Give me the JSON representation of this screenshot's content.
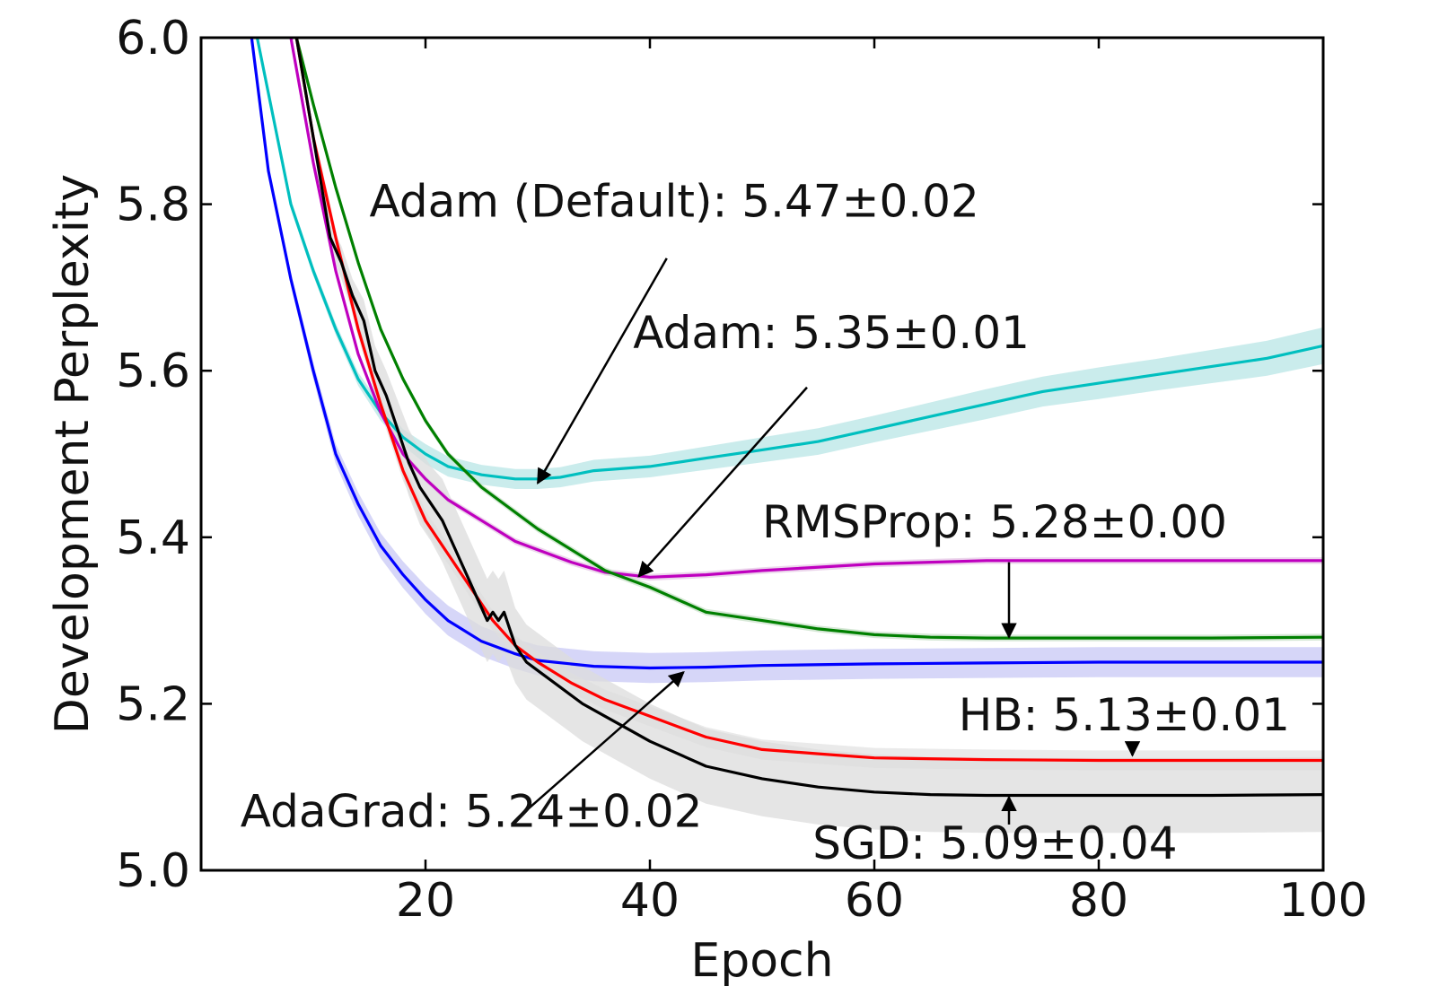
{
  "chart_data": {
    "type": "line",
    "xlabel": "Epoch",
    "ylabel": "Development Perplexity",
    "xlim": [
      0,
      100
    ],
    "ylim": [
      5.0,
      6.0
    ],
    "xticks": [
      20,
      40,
      60,
      80,
      100
    ],
    "xtick_labels": [
      "20",
      "40",
      "60",
      "80",
      "100"
    ],
    "yticks": [
      5.0,
      5.2,
      5.4,
      5.6,
      5.8,
      6.0
    ],
    "ytick_labels": [
      "5.0",
      "5.2",
      "5.4",
      "5.6",
      "5.8",
      "6.0"
    ],
    "series": [
      {
        "color": "#00bfbf",
        "band_color": "#b8e6e6",
        "x": [
          5,
          8,
          10,
          12,
          14,
          16,
          18,
          20,
          22,
          25,
          28,
          30,
          32,
          35,
          40,
          45,
          50,
          55,
          60,
          65,
          70,
          75,
          80,
          85,
          90,
          95,
          100
        ],
        "y": [
          6.0,
          5.8,
          5.72,
          5.65,
          5.59,
          5.55,
          5.52,
          5.5,
          5.485,
          5.475,
          5.47,
          5.47,
          5.472,
          5.48,
          5.485,
          5.495,
          5.505,
          5.515,
          5.53,
          5.545,
          5.56,
          5.575,
          5.585,
          5.595,
          5.605,
          5.615,
          5.63
        ],
        "band": [
          0.006,
          0.006,
          0.006,
          0.007,
          0.008,
          0.01,
          0.01,
          0.012,
          0.012,
          0.012,
          0.012,
          0.012,
          0.012,
          0.013,
          0.013,
          0.014,
          0.015,
          0.016,
          0.016,
          0.017,
          0.018,
          0.018,
          0.019,
          0.019,
          0.02,
          0.021,
          0.022
        ]
      },
      {
        "color": "#bf00bf",
        "band_color": "#e6c8e6",
        "x": [
          8,
          10,
          12,
          14,
          16,
          18,
          20,
          22,
          25,
          28,
          30,
          33,
          36,
          40,
          45,
          50,
          60,
          70,
          80,
          90,
          100
        ],
        "y": [
          6.0,
          5.85,
          5.72,
          5.62,
          5.55,
          5.5,
          5.47,
          5.445,
          5.42,
          5.395,
          5.385,
          5.37,
          5.358,
          5.352,
          5.355,
          5.36,
          5.368,
          5.372,
          5.372,
          5.372,
          5.372
        ],
        "band": [
          0.004,
          0.004,
          0.004,
          0.004,
          0.004,
          0.004,
          0.004,
          0.004,
          0.004,
          0.004,
          0.004,
          0.004,
          0.004,
          0.004,
          0.004,
          0.004,
          0.004,
          0.004,
          0.004,
          0.004,
          0.004
        ]
      },
      {
        "color": "#008000",
        "band_color": "#c8e0c8",
        "x": [
          8.5,
          10,
          12,
          14,
          16,
          18,
          20,
          22,
          25,
          28,
          30,
          33,
          36,
          40,
          45,
          50,
          55,
          60,
          65,
          70,
          80,
          90,
          100
        ],
        "y": [
          6.0,
          5.92,
          5.82,
          5.73,
          5.65,
          5.59,
          5.54,
          5.5,
          5.46,
          5.43,
          5.41,
          5.385,
          5.36,
          5.34,
          5.31,
          5.3,
          5.29,
          5.283,
          5.28,
          5.279,
          5.279,
          5.279,
          5.28
        ],
        "band": [
          0.004,
          0.004,
          0.004,
          0.004,
          0.004,
          0.004,
          0.004,
          0.004,
          0.004,
          0.004,
          0.004,
          0.004,
          0.004,
          0.004,
          0.004,
          0.004,
          0.004,
          0.004,
          0.004,
          0.004,
          0.004,
          0.004,
          0.004
        ]
      },
      {
        "color": "#0000ff",
        "band_color": "#c8c8f5",
        "x": [
          4.5,
          6,
          8,
          10,
          12,
          14,
          16,
          18,
          20,
          22,
          25,
          28,
          30,
          35,
          40,
          45,
          50,
          60,
          70,
          80,
          90,
          100
        ],
        "y": [
          6.0,
          5.84,
          5.71,
          5.6,
          5.5,
          5.44,
          5.39,
          5.355,
          5.325,
          5.3,
          5.275,
          5.26,
          5.252,
          5.245,
          5.243,
          5.244,
          5.246,
          5.248,
          5.249,
          5.25,
          5.25,
          5.25
        ],
        "band": [
          0.006,
          0.006,
          0.008,
          0.01,
          0.012,
          0.014,
          0.015,
          0.016,
          0.017,
          0.018,
          0.018,
          0.018,
          0.018,
          0.018,
          0.018,
          0.018,
          0.018,
          0.018,
          0.018,
          0.018,
          0.018,
          0.018
        ]
      },
      {
        "color": "#ff0000",
        "band_color": "#e3e3e3",
        "x": [
          8.5,
          10,
          12,
          14,
          16,
          18,
          20,
          22,
          24,
          26,
          28,
          30,
          33,
          36,
          40,
          45,
          50,
          55,
          60,
          70,
          80,
          90,
          100
        ],
        "y": [
          6.0,
          5.88,
          5.76,
          5.65,
          5.56,
          5.48,
          5.42,
          5.38,
          5.34,
          5.3,
          5.27,
          5.25,
          5.225,
          5.205,
          5.185,
          5.16,
          5.145,
          5.14,
          5.135,
          5.133,
          5.132,
          5.132,
          5.132
        ],
        "band": [
          0.01,
          0.01,
          0.01,
          0.01,
          0.01,
          0.012,
          0.012,
          0.012,
          0.012,
          0.012,
          0.012,
          0.012,
          0.012,
          0.012,
          0.012,
          0.012,
          0.012,
          0.012,
          0.012,
          0.012,
          0.012,
          0.012,
          0.012
        ]
      },
      {
        "color": "#000000",
        "band_color": "#dcdcdc",
        "x": [
          8.5,
          9.5,
          10.5,
          11.5,
          12.5,
          13.5,
          14.5,
          15.5,
          16.5,
          17.5,
          18.5,
          19.5,
          20.5,
          21.5,
          22.5,
          23.5,
          24.5,
          25.5,
          26,
          26.5,
          27,
          28,
          29,
          30,
          32,
          34,
          36,
          38,
          40,
          45,
          50,
          55,
          60,
          65,
          70,
          80,
          90,
          100
        ],
        "y": [
          6.0,
          5.92,
          5.84,
          5.76,
          5.73,
          5.69,
          5.66,
          5.6,
          5.57,
          5.53,
          5.49,
          5.46,
          5.44,
          5.42,
          5.39,
          5.36,
          5.33,
          5.3,
          5.31,
          5.3,
          5.31,
          5.27,
          5.25,
          5.24,
          5.22,
          5.2,
          5.185,
          5.17,
          5.155,
          5.125,
          5.11,
          5.1,
          5.094,
          5.091,
          5.09,
          5.09,
          5.09,
          5.091
        ],
        "band": [
          0.01,
          0.01,
          0.01,
          0.015,
          0.02,
          0.02,
          0.025,
          0.03,
          0.03,
          0.035,
          0.04,
          0.045,
          0.045,
          0.05,
          0.05,
          0.05,
          0.05,
          0.05,
          0.05,
          0.05,
          0.05,
          0.045,
          0.045,
          0.045,
          0.045,
          0.045,
          0.045,
          0.045,
          0.045,
          0.045,
          0.045,
          0.045,
          0.045,
          0.045,
          0.045,
          0.045,
          0.045,
          0.045
        ]
      }
    ],
    "annotations": [
      {
        "text": "Adam (Default): 5.47±0.02",
        "label_x": 15,
        "label_y": 5.785,
        "arrow_from": [
          41.5,
          5.735
        ],
        "arrow_to": [
          30,
          5.465
        ]
      },
      {
        "text": "Adam: 5.35±0.01",
        "label_x": 38.5,
        "label_y": 5.627,
        "arrow_from": [
          54,
          5.58
        ],
        "arrow_to": [
          39,
          5.353
        ]
      },
      {
        "text": "RMSProp: 5.28±0.00",
        "label_x": 50,
        "label_y": 5.4,
        "arrow_from": [
          72,
          5.37
        ],
        "arrow_to": [
          72,
          5.28
        ]
      },
      {
        "text": "HB: 5.13±0.01",
        "label_x": 67.5,
        "label_y": 5.168,
        "arrow_from": [
          83,
          5.15
        ],
        "arrow_to": [
          83,
          5.138
        ]
      },
      {
        "text": "AdaGrad: 5.24±0.02",
        "label_x": 3.5,
        "label_y": 5.052,
        "arrow_from": [
          29,
          5.072
        ],
        "arrow_to": [
          43,
          5.238
        ]
      },
      {
        "text": "SGD: 5.09±0.04",
        "label_x": 54.5,
        "label_y": 5.014,
        "arrow_from": [
          72,
          5.055
        ],
        "arrow_to": [
          72,
          5.088
        ]
      }
    ]
  }
}
